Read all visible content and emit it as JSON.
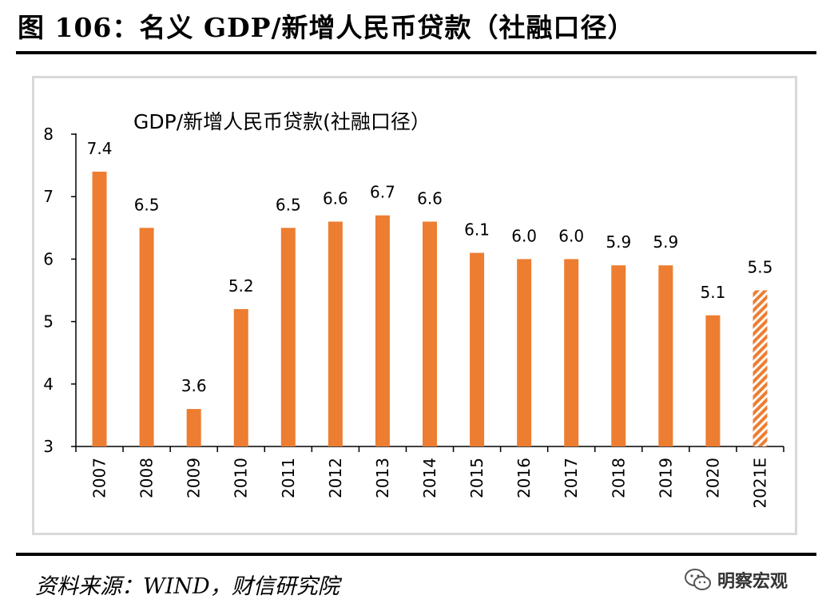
{
  "figure": {
    "title": "图 106：名义 GDP/新增人民币贷款（社融口径）",
    "source": "资料来源：WIND，财信研究院",
    "brand": "明察宏观"
  },
  "colors": {
    "bar": "#ed7d31",
    "frame": "#d9d9d9",
    "axis": "#000000"
  },
  "chart_data": {
    "type": "bar",
    "title": "GDP/新增人民币贷款(社融口径）",
    "categories": [
      "2007",
      "2008",
      "2009",
      "2010",
      "2011",
      "2012",
      "2013",
      "2014",
      "2015",
      "2016",
      "2017",
      "2018",
      "2019",
      "2020",
      "2021E"
    ],
    "values": [
      7.4,
      6.5,
      3.6,
      5.2,
      6.5,
      6.6,
      6.7,
      6.6,
      6.1,
      6.0,
      6.0,
      5.9,
      5.9,
      5.1,
      5.5
    ],
    "data_labels": [
      "7.4",
      "6.5",
      "3.6",
      "5.2",
      "6.5",
      "6.6",
      "6.7",
      "6.6",
      "6.1",
      "6.0",
      "6.0",
      "5.9",
      "5.9",
      "5.1",
      "5.5"
    ],
    "estimate_categories": [
      "2021E"
    ],
    "ylim": [
      3,
      8
    ],
    "yticks": [
      3,
      4,
      5,
      6,
      7,
      8
    ],
    "grid": false,
    "legend": "none",
    "xlabel": "",
    "ylabel": ""
  }
}
